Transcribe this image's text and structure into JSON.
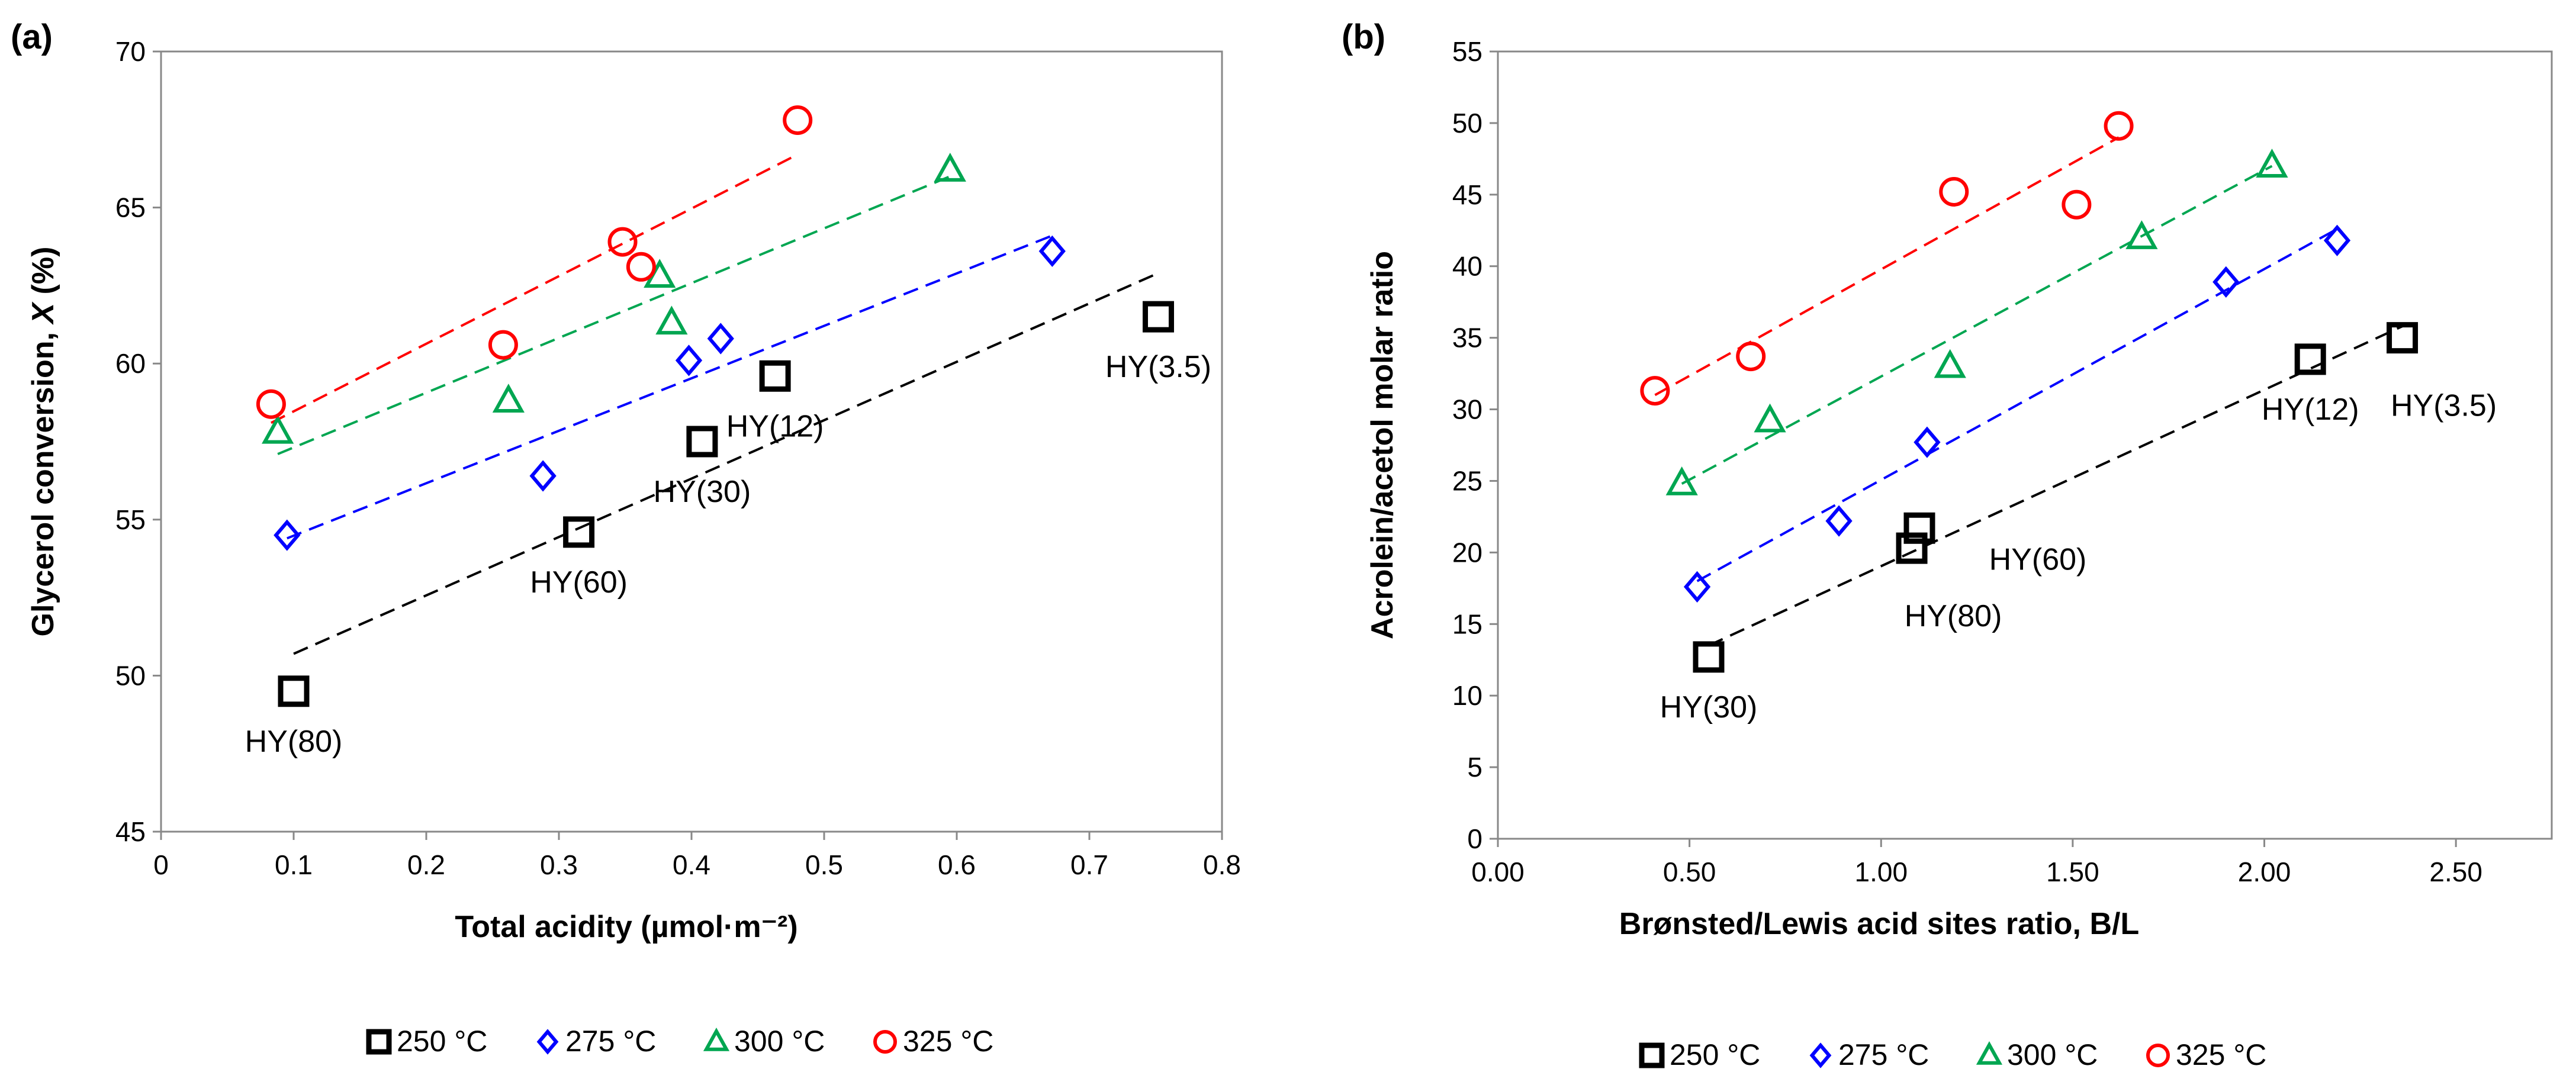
{
  "chart_data": [
    {
      "type": "scatter",
      "panel_label": "(a)",
      "title": "",
      "xlabel": "Total acidity (µmol·m⁻²)",
      "ylabel_pre": "Glycerol conversion, ",
      "ylabel_var": "X",
      "ylabel_post": " (%)",
      "xlim": [
        0,
        0.8
      ],
      "ylim": [
        45,
        70
      ],
      "xticks": [
        0,
        0.1,
        0.2,
        0.3,
        0.4,
        0.5,
        0.6,
        0.7,
        0.8
      ],
      "xtick_labels": [
        "0",
        "0.1",
        "0.2",
        "0.3",
        "0.4",
        "0.5",
        "0.6",
        "0.7",
        "0.8"
      ],
      "yticks": [
        45,
        50,
        55,
        60,
        65,
        70
      ],
      "ytick_labels": [
        "45",
        "50",
        "55",
        "60",
        "65",
        "70"
      ],
      "series": [
        {
          "name": "250 °C",
          "marker": "square",
          "color": "#000000",
          "x": [
            0.1,
            0.315,
            0.408,
            0.463,
            0.752
          ],
          "y": [
            49.5,
            54.6,
            57.5,
            59.6,
            61.5
          ],
          "fit": [
            [
              0.1,
              50.7
            ],
            [
              0.752,
              62.9
            ]
          ]
        },
        {
          "name": "275 °C",
          "marker": "diamond",
          "color": "#0000ff",
          "x": [
            0.095,
            0.288,
            0.398,
            0.422,
            0.672
          ],
          "y": [
            54.5,
            56.4,
            60.1,
            60.8,
            63.6
          ],
          "fit": [
            [
              0.095,
              54.4
            ],
            [
              0.672,
              64.1
            ]
          ]
        },
        {
          "name": "300 °C",
          "marker": "triangle",
          "color": "#00a651",
          "x": [
            0.088,
            0.262,
            0.376,
            0.385,
            0.595
          ],
          "y": [
            57.8,
            58.8,
            62.8,
            61.3,
            66.2
          ],
          "fit": [
            [
              0.088,
              57.1
            ],
            [
              0.595,
              66.0
            ]
          ]
        },
        {
          "name": "325 °C",
          "marker": "circle",
          "color": "#ff0000",
          "x": [
            0.083,
            0.258,
            0.348,
            0.362,
            0.48
          ],
          "y": [
            58.7,
            60.6,
            63.9,
            63.1,
            67.8
          ],
          "fit": [
            [
              0.083,
              58.1
            ],
            [
              0.48,
              66.7
            ]
          ]
        }
      ],
      "annotations": [
        {
          "text": "HY(80)",
          "x": 0.1,
          "y": 49.5,
          "pos": "below"
        },
        {
          "text": "HY(60)",
          "x": 0.315,
          "y": 54.6,
          "pos": "below"
        },
        {
          "text": "HY(30)",
          "x": 0.408,
          "y": 57.5,
          "pos": "below"
        },
        {
          "text": "HY(12)",
          "x": 0.463,
          "y": 59.6,
          "pos": "below"
        },
        {
          "text": "HY(3.5)",
          "x": 0.752,
          "y": 61.5,
          "pos": "below"
        }
      ]
    },
    {
      "type": "scatter",
      "panel_label": "(b)",
      "title": "",
      "xlabel": "Brønsted/Lewis acid sites ratio, B/L",
      "ylabel": "Acrolein/acetol molar ratio",
      "xlim": [
        0,
        2.75
      ],
      "ylim": [
        0,
        55
      ],
      "xticks": [
        0,
        0.5,
        1,
        1.5,
        2,
        2.5
      ],
      "xtick_labels": [
        "0.00",
        "0.50",
        "1.00",
        "1.50",
        "2.00",
        "2.50"
      ],
      "yticks": [
        0,
        5,
        10,
        15,
        20,
        25,
        30,
        35,
        40,
        45,
        50,
        55
      ],
      "ytick_labels": [
        "0",
        "5",
        "10",
        "15",
        "20",
        "25",
        "30",
        "35",
        "40",
        "45",
        "50",
        "55"
      ],
      "series": [
        {
          "name": "250 °C",
          "marker": "square",
          "color": "#000000",
          "x": [
            0.55,
            1.08,
            1.1,
            2.12,
            2.36
          ],
          "y": [
            12.7,
            20.3,
            21.7,
            33.5,
            35.0
          ],
          "fit": [
            [
              0.55,
              13.5
            ],
            [
              2.36,
              35.8
            ]
          ]
        },
        {
          "name": "275 °C",
          "marker": "diamond",
          "color": "#0000ff",
          "x": [
            0.52,
            0.89,
            1.12,
            1.9,
            2.19
          ],
          "y": [
            17.6,
            22.2,
            27.7,
            38.9,
            41.8
          ],
          "fit": [
            [
              0.52,
              18.0
            ],
            [
              2.19,
              42.6
            ]
          ]
        },
        {
          "name": "300 °C",
          "marker": "triangle",
          "color": "#00a651",
          "x": [
            0.48,
            0.71,
            1.18,
            1.68,
            2.02
          ],
          "y": [
            24.8,
            29.2,
            33.0,
            42.0,
            47.0
          ],
          "fit": [
            [
              0.48,
              24.8
            ],
            [
              2.02,
              47.0
            ]
          ]
        },
        {
          "name": "325 °C",
          "marker": "circle",
          "color": "#ff0000",
          "x": [
            0.41,
            0.66,
            1.19,
            1.51,
            1.62
          ],
          "y": [
            31.3,
            33.7,
            45.2,
            44.3,
            49.8
          ],
          "fit": [
            [
              0.41,
              31.0
            ],
            [
              1.62,
              49.0
            ]
          ]
        }
      ],
      "annotations": [
        {
          "text": "HY(30)",
          "x": 0.55,
          "y": 12.7,
          "pos": "below"
        },
        {
          "text": "HY(80)",
          "x": 1.08,
          "y": 20.3,
          "pos": "below-right"
        },
        {
          "text": "HY(60)",
          "x": 1.1,
          "y": 21.7,
          "pos": "right-below"
        },
        {
          "text": "HY(12)",
          "x": 2.12,
          "y": 33.5,
          "pos": "below"
        },
        {
          "text": "HY(3.5)",
          "x": 2.36,
          "y": 35.0,
          "pos": "below-right"
        }
      ]
    }
  ]
}
